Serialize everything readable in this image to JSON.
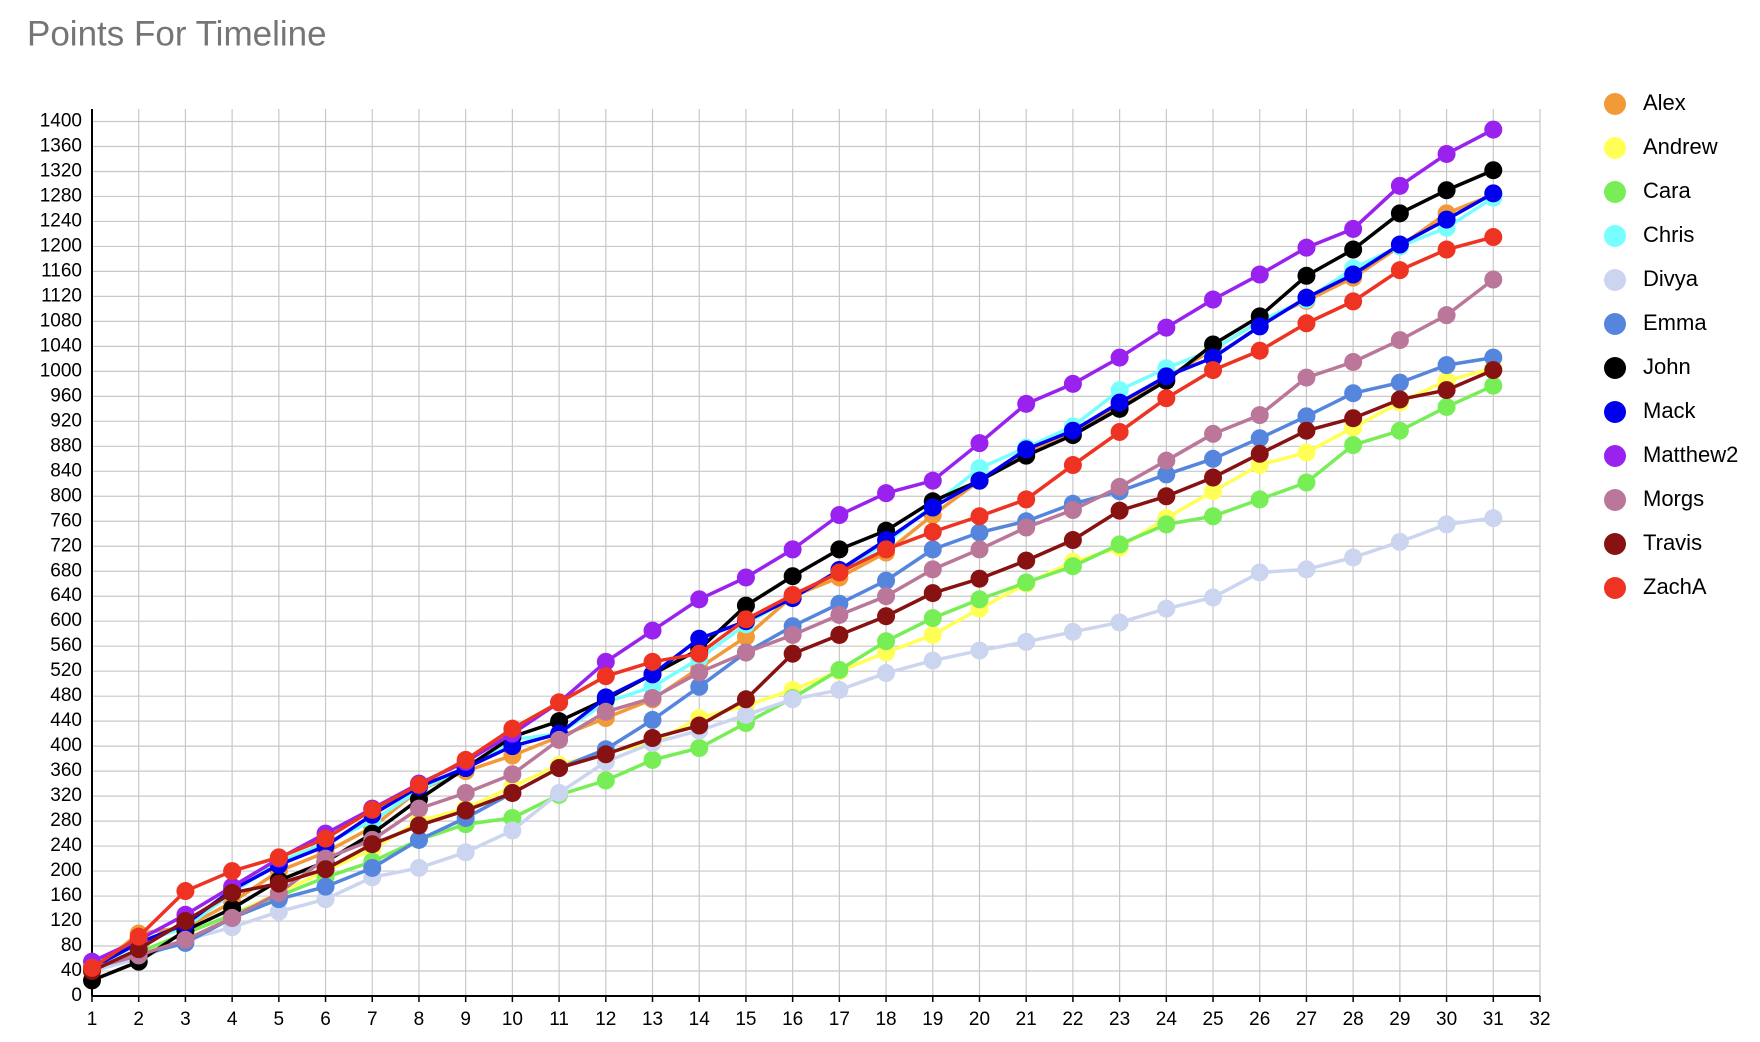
{
  "chart_data": {
    "type": "line",
    "title": "Points For Timeline",
    "x": [
      1,
      2,
      3,
      4,
      5,
      6,
      7,
      8,
      9,
      10,
      11,
      12,
      13,
      14,
      15,
      16,
      17,
      18,
      19,
      20,
      21,
      22,
      23,
      24,
      25,
      26,
      27,
      28,
      29,
      30,
      31
    ],
    "xlim": [
      1,
      32
    ],
    "xticks": [
      1,
      2,
      3,
      4,
      5,
      6,
      7,
      8,
      9,
      10,
      11,
      12,
      13,
      14,
      15,
      16,
      17,
      18,
      19,
      20,
      21,
      22,
      23,
      24,
      25,
      26,
      27,
      28,
      29,
      30,
      31,
      32
    ],
    "ylim": [
      0,
      1420
    ],
    "yticks": [
      0,
      40,
      80,
      120,
      160,
      200,
      240,
      280,
      320,
      360,
      400,
      440,
      480,
      520,
      560,
      600,
      640,
      680,
      720,
      760,
      800,
      840,
      880,
      920,
      960,
      1000,
      1040,
      1080,
      1120,
      1160,
      1200,
      1240,
      1280,
      1320,
      1360,
      1400
    ],
    "grid": true,
    "legend": "right",
    "series": [
      {
        "name": "Alex",
        "color": "#f29a38",
        "values": [
          40,
          100,
          110,
          150,
          200,
          230,
          270,
          330,
          360,
          385,
          415,
          445,
          475,
          525,
          575,
          640,
          670,
          710,
          770,
          825,
          870,
          900,
          945,
          990,
          1035,
          1080,
          1113,
          1150,
          1200,
          1253,
          1283
        ]
      },
      {
        "name": "Andrew",
        "color": "#ffff55",
        "values": [
          40,
          70,
          100,
          130,
          165,
          200,
          235,
          280,
          300,
          335,
          370,
          390,
          405,
          445,
          465,
          490,
          520,
          550,
          578,
          620,
          660,
          695,
          718,
          765,
          808,
          850,
          870,
          910,
          950,
          985,
          1005
        ]
      },
      {
        "name": "Cara",
        "color": "#77ee55",
        "values": [
          40,
          70,
          100,
          130,
          160,
          190,
          215,
          250,
          275,
          285,
          322,
          345,
          378,
          397,
          437,
          477,
          522,
          568,
          605,
          635,
          662,
          688,
          723,
          755,
          768,
          795,
          822,
          882,
          905,
          943,
          977
        ]
      },
      {
        "name": "Chris",
        "color": "#77ffff",
        "values": [
          40,
          85,
          110,
          165,
          215,
          245,
          280,
          330,
          365,
          410,
          420,
          470,
          495,
          540,
          595,
          640,
          680,
          725,
          785,
          845,
          878,
          912,
          970,
          1005,
          1035,
          1080,
          1115,
          1165,
          1200,
          1230,
          1278
        ]
      },
      {
        "name": "Divya",
        "color": "#ccd5f0",
        "values": [
          40,
          60,
          90,
          110,
          135,
          155,
          190,
          205,
          230,
          265,
          325,
          375,
          405,
          425,
          450,
          475,
          490,
          517,
          537,
          553,
          567,
          583,
          598,
          620,
          638,
          678,
          683,
          702,
          727,
          755,
          765
        ]
      },
      {
        "name": "Emma",
        "color": "#5585dd",
        "values": [
          45,
          65,
          85,
          125,
          155,
          175,
          205,
          250,
          285,
          325,
          365,
          395,
          442,
          495,
          550,
          592,
          628,
          665,
          715,
          742,
          760,
          788,
          808,
          835,
          860,
          893,
          928,
          965,
          982,
          1010,
          1022
        ]
      },
      {
        "name": "John",
        "color": "#000000",
        "values": [
          25,
          55,
          105,
          140,
          185,
          215,
          260,
          315,
          365,
          415,
          440,
          475,
          515,
          555,
          625,
          672,
          715,
          745,
          792,
          825,
          865,
          898,
          940,
          985,
          1043,
          1088,
          1153,
          1195,
          1253,
          1290,
          1322
        ]
      },
      {
        "name": "Mack",
        "color": "#0000ee",
        "values": [
          45,
          85,
          115,
          170,
          210,
          240,
          290,
          335,
          365,
          400,
          420,
          478,
          515,
          572,
          600,
          637,
          682,
          730,
          782,
          825,
          875,
          905,
          950,
          992,
          1022,
          1072,
          1118,
          1155,
          1203,
          1243,
          1285
        ]
      },
      {
        "name": "Matthew2",
        "color": "#9922ee",
        "values": [
          55,
          90,
          130,
          175,
          220,
          260,
          300,
          340,
          375,
          420,
          470,
          535,
          585,
          635,
          670,
          715,
          770,
          805,
          825,
          885,
          948,
          980,
          1022,
          1070,
          1115,
          1155,
          1198,
          1228,
          1297,
          1348,
          1387
        ]
      },
      {
        "name": "Morgs",
        "color": "#bb7799",
        "values": [
          45,
          65,
          90,
          125,
          165,
          220,
          250,
          300,
          325,
          355,
          410,
          455,
          477,
          518,
          550,
          578,
          610,
          640,
          683,
          715,
          750,
          778,
          815,
          857,
          900,
          930,
          990,
          1015,
          1050,
          1090,
          1147
        ]
      },
      {
        "name": "Travis",
        "color": "#881111",
        "values": [
          40,
          75,
          120,
          165,
          180,
          203,
          243,
          273,
          297,
          325,
          365,
          387,
          413,
          433,
          475,
          548,
          578,
          608,
          645,
          668,
          697,
          730,
          777,
          800,
          830,
          868,
          905,
          925,
          955,
          970,
          1002
        ]
      },
      {
        "name": "ZachA",
        "color": "#ee3322",
        "values": [
          45,
          95,
          168,
          200,
          222,
          252,
          298,
          338,
          378,
          428,
          470,
          512,
          535,
          548,
          603,
          642,
          678,
          715,
          743,
          768,
          795,
          850,
          903,
          957,
          1002,
          1033,
          1077,
          1112,
          1162,
          1195,
          1215
        ]
      }
    ]
  }
}
